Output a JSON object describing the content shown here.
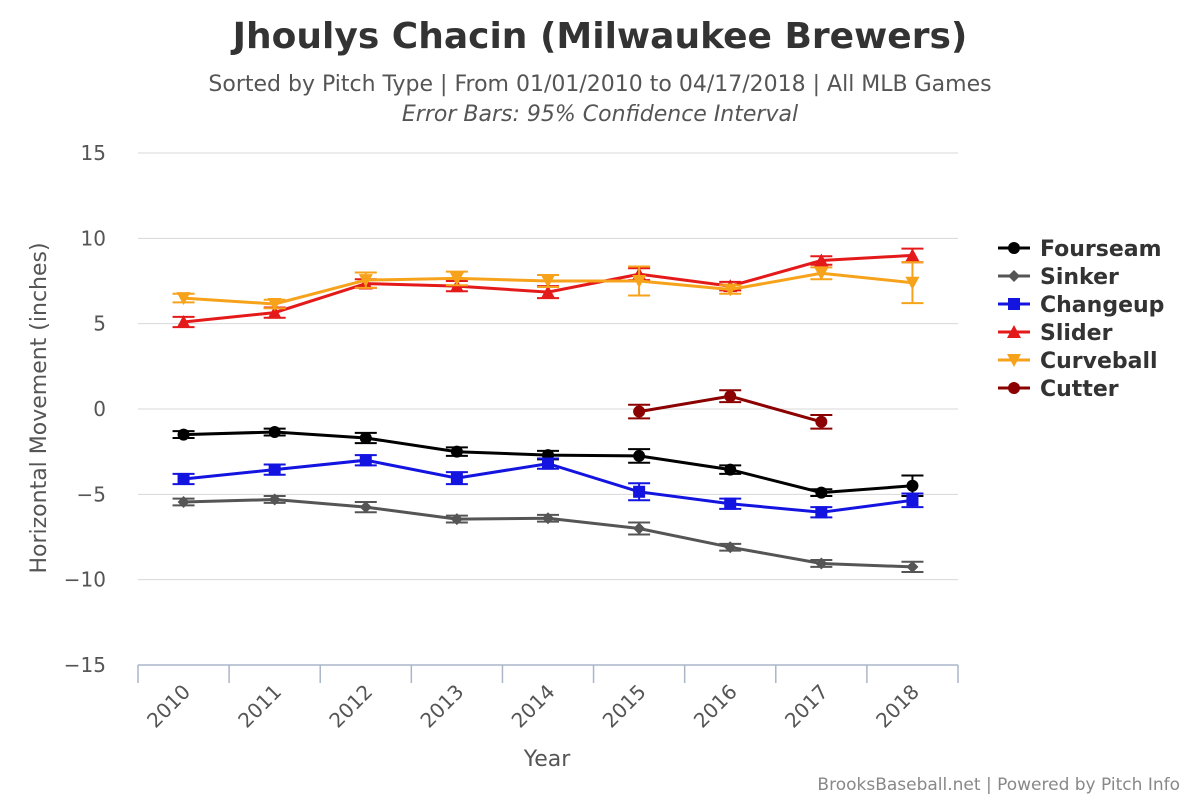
{
  "chart_data": {
    "type": "line",
    "title": "Jhoulys Chacin (Milwaukee Brewers)",
    "subtitle": "Sorted by Pitch Type | From 01/01/2010 to 04/17/2018 | All MLB Games",
    "subtitle2": "Error Bars: 95% Confidence Interval",
    "xlabel": "Year",
    "ylabel": "Horizontal Movement (inches)",
    "credit": "BrooksBaseball.net | Powered by Pitch Info",
    "categories": [
      "2010",
      "2011",
      "2012",
      "2013",
      "2014",
      "2015",
      "2016",
      "2017",
      "2018"
    ],
    "ylim": [
      -15,
      15
    ],
    "yticks": [
      15,
      10,
      5,
      0,
      -5,
      -10,
      -15
    ],
    "ytick_labels": [
      "15",
      "10",
      "5",
      "0",
      "−5",
      "−10",
      "−15"
    ],
    "grid": true,
    "legend_position": "right",
    "series": [
      {
        "name": "Fourseam",
        "color": "#000000",
        "marker": "circle",
        "values": [
          -1.5,
          -1.35,
          -1.7,
          -2.5,
          -2.7,
          -2.75,
          -3.55,
          -4.9,
          -4.5
        ],
        "err": [
          0.2,
          0.2,
          0.3,
          0.25,
          0.25,
          0.4,
          0.25,
          0.2,
          0.6
        ]
      },
      {
        "name": "Sinker",
        "color": "#555555",
        "marker": "diamond",
        "values": [
          -5.45,
          -5.3,
          -5.75,
          -6.45,
          -6.4,
          -7.0,
          -8.1,
          -9.05,
          -9.25
        ],
        "err": [
          0.2,
          0.2,
          0.3,
          0.2,
          0.2,
          0.35,
          0.2,
          0.2,
          0.3
        ]
      },
      {
        "name": "Changeup",
        "color": "#1414e0",
        "marker": "square",
        "values": [
          -4.1,
          -3.55,
          -3.0,
          -4.05,
          -3.2,
          -4.85,
          -5.55,
          -6.05,
          -5.35
        ],
        "err": [
          0.3,
          0.3,
          0.3,
          0.35,
          0.3,
          0.5,
          0.3,
          0.3,
          0.4
        ]
      },
      {
        "name": "Slider",
        "color": "#e41a1a",
        "marker": "triangle",
        "values": [
          5.1,
          5.65,
          7.35,
          7.2,
          6.85,
          7.9,
          7.2,
          8.7,
          9.0
        ],
        "err": [
          0.3,
          0.3,
          0.25,
          0.3,
          0.35,
          0.35,
          0.25,
          0.25,
          0.4
        ]
      },
      {
        "name": "Curveball",
        "color": "#f7a21b",
        "marker": "triangle-down",
        "values": [
          6.5,
          6.15,
          7.55,
          7.65,
          7.5,
          7.5,
          7.0,
          7.95,
          7.4
        ],
        "err": [
          0.25,
          0.25,
          0.45,
          0.4,
          0.35,
          0.85,
          0.25,
          0.35,
          1.2
        ]
      },
      {
        "name": "Cutter",
        "color": "#8b0000",
        "marker": "circle",
        "values": [
          null,
          null,
          null,
          null,
          null,
          -0.15,
          0.75,
          -0.75,
          null
        ],
        "err": [
          null,
          null,
          null,
          null,
          null,
          0.4,
          0.35,
          0.4,
          null
        ]
      }
    ]
  }
}
